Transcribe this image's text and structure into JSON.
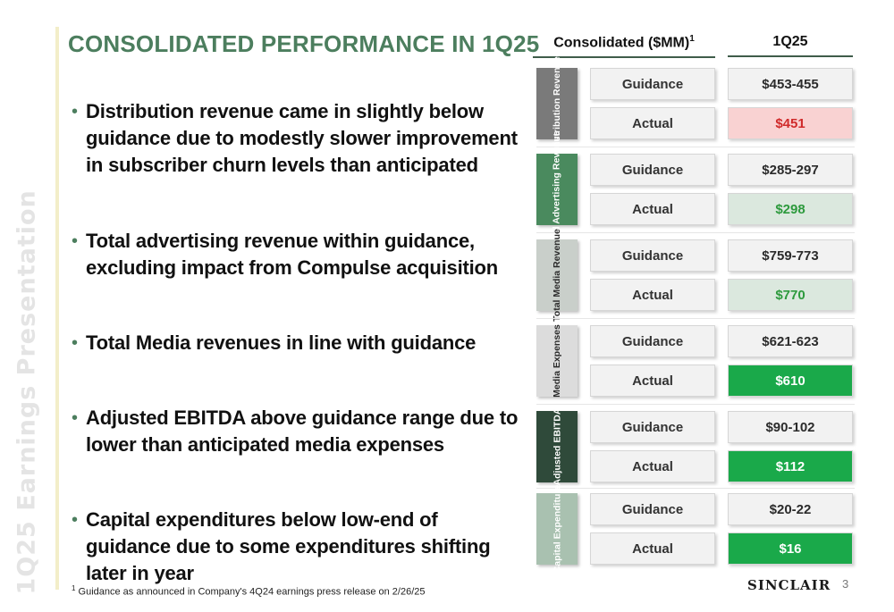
{
  "side_label": "1Q25 Earnings Presentation",
  "title": "CONSOLIDATED PERFORMANCE IN 1Q25",
  "bullets": [
    "Distribution revenue came in slightly below guidance due to modestly slower improvement in subscriber churn levels than anticipated",
    "Total advertising revenue within guidance, excluding impact from Compulse acquisition",
    "Total Media revenues in line with guidance",
    "Adjusted EBITDA above guidance range due to lower than anticipated media expenses",
    "Capital expenditures below low-end of guidance due to some expenditures shifting later in year"
  ],
  "table": {
    "col1_header": "Consolidated ($MM)",
    "col1_header_sup": "1",
    "col2_header": "1Q25",
    "row_labels": {
      "guidance": "Guidance",
      "actual": "Actual"
    },
    "groups": [
      {
        "name": "Distribution Revenue",
        "guidance": "$453-455",
        "actual": "$451",
        "actual_status": "below",
        "tab_color": "#7a7a7a"
      },
      {
        "name": "Total Advertising Revenue",
        "guidance": "$285-297",
        "actual": "$298",
        "actual_status": "within",
        "tab_color": "#4a8a5e"
      },
      {
        "name": "Total Media Revenue",
        "guidance": "$759-773",
        "actual": "$770",
        "actual_status": "within",
        "tab_color": "#c9cfca"
      },
      {
        "name": "Media Expenses",
        "guidance": "$621-623",
        "actual": "$610",
        "actual_status": "favorable",
        "tab_color": "#dcdcdc"
      },
      {
        "name": "Adjusted EBITDA",
        "guidance": "$90-102",
        "actual": "$112",
        "actual_status": "favorable",
        "tab_color": "#2f4a3a"
      },
      {
        "name": "Capital Expenditure",
        "guidance": "$20-22",
        "actual": "$16",
        "actual_status": "favorable",
        "tab_color": "#a9c1b0"
      }
    ]
  },
  "footnote": {
    "marker": "1",
    "text": "Guidance as announced in Company's 4Q24 earnings press release on 2/26/25"
  },
  "logo": "SINCLAIR",
  "page_number": "3",
  "colors": {
    "title": "#4c7e5e",
    "negative_bg": "#f9d2d2",
    "negative_text": "#d02a2a",
    "positive_bg": "#dbe8de",
    "positive_text": "#2d9a3d",
    "strong_bg": "#1aa94a"
  }
}
